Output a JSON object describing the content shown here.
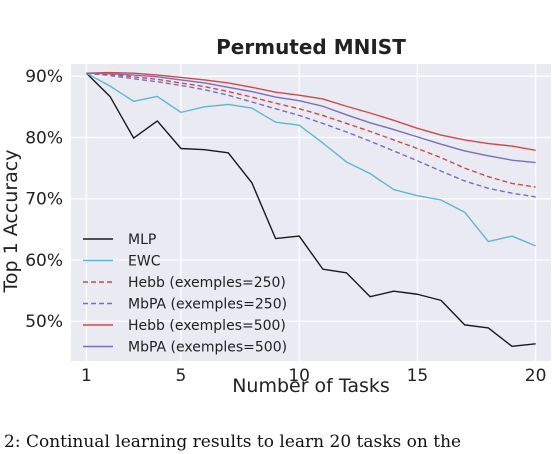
{
  "caption": "2: Continual learning results to learn 20 tasks on the",
  "chart_data": {
    "type": "line",
    "title": "Permuted MNIST",
    "xlabel": "Number of Tasks",
    "ylabel": "Top 1 Accuracy",
    "xlim": [
      0.35,
      20.65
    ],
    "ylim": [
      43.5,
      92.0
    ],
    "xticks": [
      1,
      5,
      10,
      15,
      20
    ],
    "xtick_labels": [
      "1",
      "5",
      "10",
      "15",
      "20"
    ],
    "yticks": [
      50,
      60,
      70,
      80,
      90
    ],
    "ytick_labels": [
      "50%",
      "60%",
      "70%",
      "80%",
      "90%"
    ],
    "grid": true,
    "legend_position": "lower-left",
    "x": [
      1,
      2,
      3,
      4,
      5,
      6,
      7,
      8,
      9,
      10,
      11,
      12,
      13,
      14,
      15,
      16,
      17,
      18,
      19,
      20
    ],
    "series": [
      {
        "name": "MLP",
        "color": "#1a1a1a",
        "dash": "solid",
        "values": [
          90.5,
          86.7,
          79.9,
          82.7,
          78.2,
          78.0,
          77.5,
          72.6,
          63.5,
          63.9,
          58.5,
          57.9,
          54.0,
          54.9,
          54.4,
          53.4,
          49.4,
          48.9,
          45.9,
          46.3
        ]
      },
      {
        "name": "EWC",
        "color": "#5bb8d4",
        "dash": "solid",
        "values": [
          90.5,
          88.4,
          85.9,
          86.7,
          84.1,
          85.0,
          85.4,
          84.8,
          82.5,
          82.0,
          79.1,
          76.0,
          74.1,
          71.5,
          70.5,
          69.8,
          67.8,
          63.0,
          63.9,
          62.3
        ]
      },
      {
        "name": "Hebb (exemples=250)",
        "color": "#d04848",
        "dash": "dashed",
        "values": [
          90.5,
          90.3,
          89.9,
          89.5,
          88.9,
          88.3,
          87.5,
          86.6,
          85.6,
          84.7,
          83.6,
          82.3,
          81.0,
          79.6,
          78.2,
          76.7,
          75.0,
          73.6,
          72.5,
          71.9
        ]
      },
      {
        "name": "MbPA (exemples=250)",
        "color": "#7a6cc0",
        "dash": "dashed",
        "values": [
          90.5,
          90.1,
          89.6,
          89.1,
          88.5,
          87.8,
          86.9,
          85.8,
          84.7,
          83.6,
          82.3,
          80.9,
          79.4,
          77.8,
          76.2,
          74.5,
          72.9,
          71.7,
          70.9,
          70.3
        ]
      },
      {
        "name": "Hebb (exemples=500)",
        "color": "#d04848",
        "dash": "solid",
        "values": [
          90.5,
          90.6,
          90.5,
          90.2,
          89.8,
          89.4,
          88.9,
          88.2,
          87.4,
          86.9,
          86.3,
          85.1,
          84.0,
          82.8,
          81.5,
          80.4,
          79.6,
          79.0,
          78.6,
          77.9
        ]
      },
      {
        "name": "MbPA (exemples=500)",
        "color": "#7a6cc0",
        "dash": "solid",
        "values": [
          90.5,
          90.4,
          90.2,
          89.9,
          89.4,
          88.9,
          88.2,
          87.5,
          86.6,
          86.0,
          85.1,
          83.7,
          82.4,
          81.3,
          80.1,
          78.9,
          77.8,
          77.0,
          76.3,
          75.9
        ]
      }
    ]
  }
}
